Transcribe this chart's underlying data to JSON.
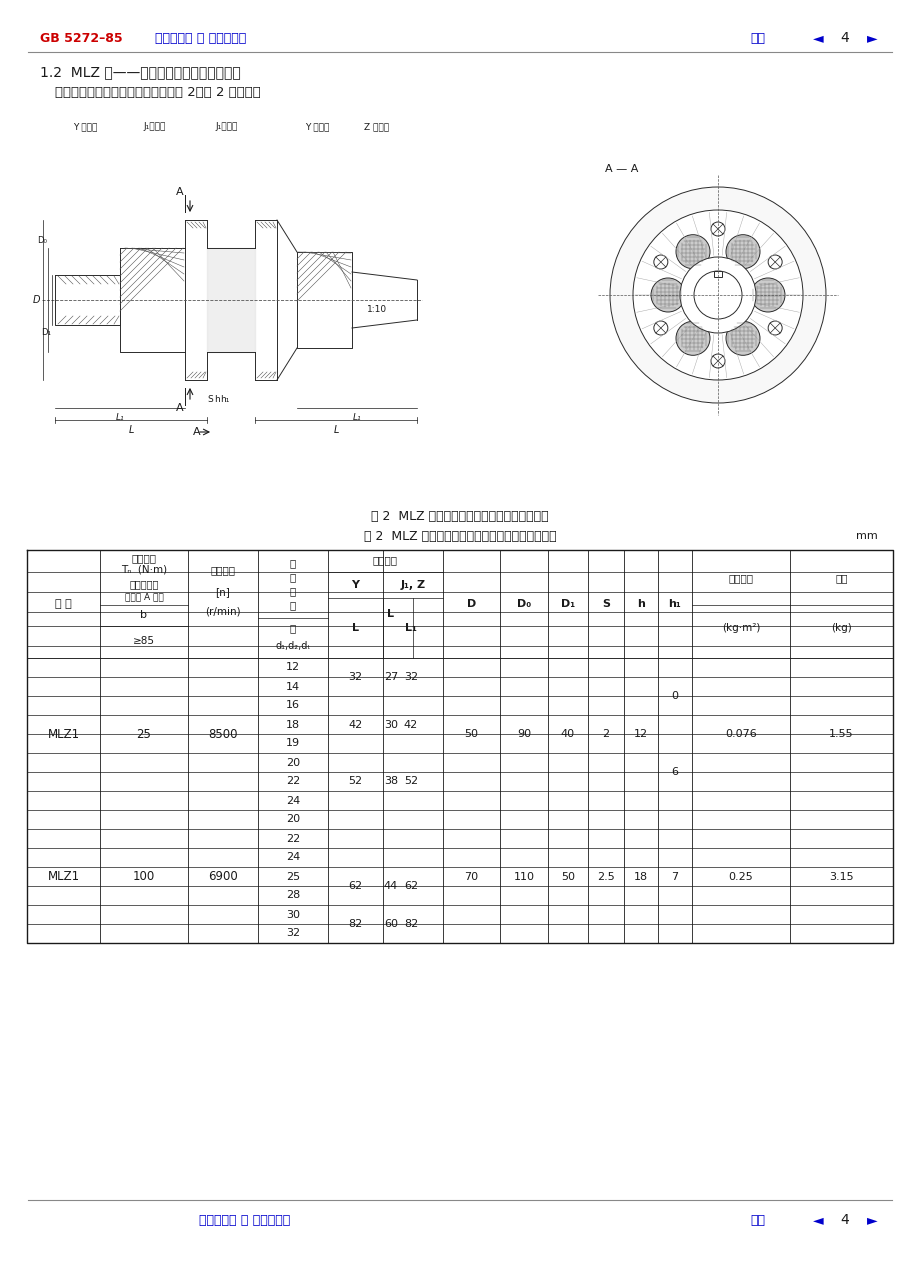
{
  "page_bg": "#ffffff",
  "header_left_red": "GB 5272–85",
  "header_left_blue": "返回总目录 ｜ 返回分目录",
  "header_right_blue": "后退",
  "header_page": "4",
  "section_title": "1.2  MLZ 型——单法兰型梅花形弹性联轴器",
  "section_subtitle": "型式、基本参数和主要尺寸应符合图 2、表 2 的规定。",
  "fig_caption": "图 2  MLZ 型单法兰型梅花形弹性联轴器结构图",
  "table_caption": "表 2  MLZ 型梅花形弹性联轴器基本参数和主要尺寸",
  "table_unit": "mm",
  "footer_left_blue": "返回总目录 ｜ 返回分目录",
  "footer_right_blue": "后退",
  "footer_page": "4",
  "blue_color": "#0000cc",
  "red_color": "#cc0000",
  "dark_color": "#1a1a1a",
  "separator_color": "#888888"
}
